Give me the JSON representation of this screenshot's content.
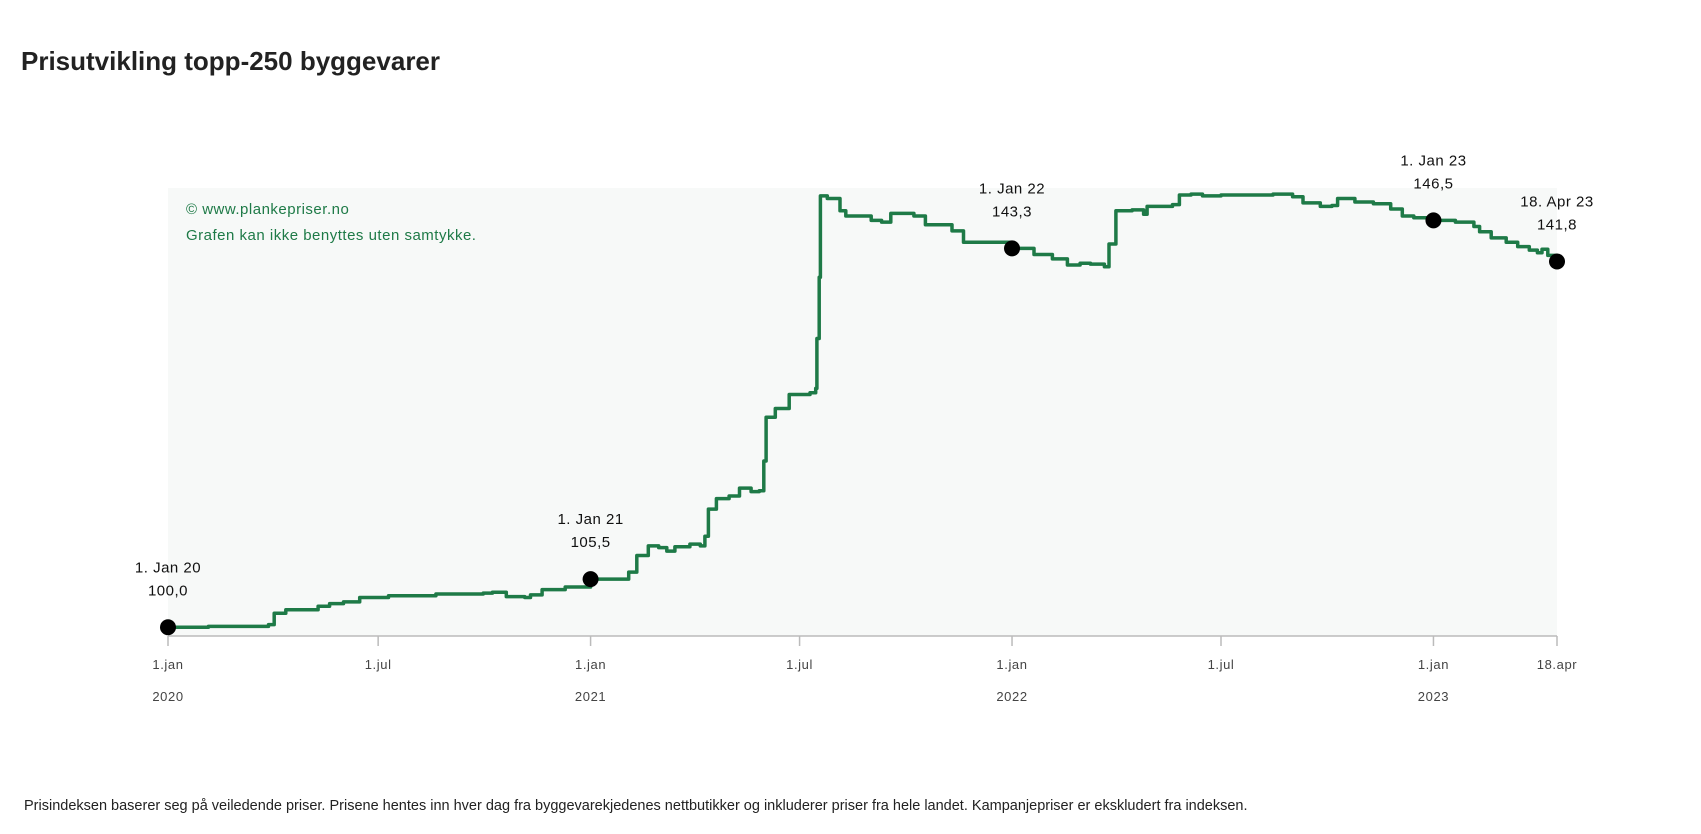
{
  "title": "Prisutvikling topp-250 byggevarer",
  "footnote": "Prisindeksen baserer seg på veiledende priser. Prisene hentes inn hver dag fra byggevarekjedenes nettbutikker og inkluderer priser fra hele landet. Kampanjepriser er ekskludert fra indeksen.",
  "watermark": {
    "line1": "© www.plankepriser.no",
    "line2": "Grafen kan ikke benyttes uten samtykke."
  },
  "colors": {
    "line": "#1e7a47",
    "plot_bg": "#f7f9f8",
    "axis": "#bbbbbb",
    "marker": "#000000",
    "watermark": "#1e7a47"
  },
  "chart_data": {
    "type": "line",
    "xlim": [
      "2020-01-01",
      "2023-04-18"
    ],
    "ylim": [
      99,
      150.2
    ],
    "grid": false,
    "x_ticks": [
      {
        "date": "2020-01-01",
        "label": "1.jan",
        "year": "2020"
      },
      {
        "date": "2020-07-01",
        "label": "1.jul",
        "year": ""
      },
      {
        "date": "2021-01-01",
        "label": "1.jan",
        "year": "2021"
      },
      {
        "date": "2021-07-01",
        "label": "1.jul",
        "year": ""
      },
      {
        "date": "2022-01-01",
        "label": "1.jan",
        "year": "2022"
      },
      {
        "date": "2022-07-01",
        "label": "1.jul",
        "year": ""
      },
      {
        "date": "2023-01-01",
        "label": "1.jan",
        "year": "2023"
      },
      {
        "date": "2023-04-18",
        "label": "18.apr",
        "year": ""
      }
    ],
    "series": [
      {
        "points": [
          [
            "2020-01-01",
            100.0
          ],
          [
            "2020-02-05",
            100.1
          ],
          [
            "2020-03-15",
            100.1
          ],
          [
            "2020-03-28",
            100.3
          ],
          [
            "2020-04-02",
            101.6
          ],
          [
            "2020-04-12",
            102.0
          ],
          [
            "2020-05-01",
            102.0
          ],
          [
            "2020-05-10",
            102.4
          ],
          [
            "2020-05-20",
            102.7
          ],
          [
            "2020-06-01",
            102.9
          ],
          [
            "2020-06-15",
            103.4
          ],
          [
            "2020-07-10",
            103.6
          ],
          [
            "2020-08-20",
            103.8
          ],
          [
            "2020-09-30",
            103.9
          ],
          [
            "2020-10-08",
            104.0
          ],
          [
            "2020-10-20",
            103.5
          ],
          [
            "2020-11-05",
            103.4
          ],
          [
            "2020-11-10",
            103.7
          ],
          [
            "2020-11-20",
            104.3
          ],
          [
            "2020-12-10",
            104.6
          ],
          [
            "2021-01-01",
            105.5
          ],
          [
            "2021-01-10",
            105.5
          ],
          [
            "2021-01-25",
            105.5
          ],
          [
            "2021-02-03",
            106.3
          ],
          [
            "2021-02-10",
            108.2
          ],
          [
            "2021-02-20",
            109.3
          ],
          [
            "2021-03-01",
            109.1
          ],
          [
            "2021-03-08",
            108.7
          ],
          [
            "2021-03-15",
            109.2
          ],
          [
            "2021-03-28",
            109.5
          ],
          [
            "2021-04-06",
            109.3
          ],
          [
            "2021-04-10",
            110.4
          ],
          [
            "2021-04-13",
            113.5
          ],
          [
            "2021-04-20",
            114.7
          ],
          [
            "2021-05-01",
            115.0
          ],
          [
            "2021-05-10",
            115.9
          ],
          [
            "2021-05-20",
            115.5
          ],
          [
            "2021-05-27",
            115.6
          ],
          [
            "2021-05-31",
            119.0
          ],
          [
            "2021-06-02",
            124.0
          ],
          [
            "2021-06-10",
            125.0
          ],
          [
            "2021-06-22",
            126.6
          ],
          [
            "2021-07-10",
            126.8
          ],
          [
            "2021-07-15",
            127.3
          ],
          [
            "2021-07-16",
            133.0
          ],
          [
            "2021-07-18",
            140.0
          ],
          [
            "2021-07-19",
            149.3
          ],
          [
            "2021-07-25",
            149.0
          ],
          [
            "2021-08-05",
            147.6
          ],
          [
            "2021-08-10",
            147.0
          ],
          [
            "2021-09-01",
            146.5
          ],
          [
            "2021-09-10",
            146.3
          ],
          [
            "2021-09-18",
            147.3
          ],
          [
            "2021-10-08",
            147.0
          ],
          [
            "2021-10-18",
            146.0
          ],
          [
            "2021-11-10",
            145.3
          ],
          [
            "2021-11-20",
            144.0
          ],
          [
            "2022-01-01",
            143.3
          ],
          [
            "2022-01-20",
            142.6
          ],
          [
            "2022-02-05",
            142.1
          ],
          [
            "2022-02-18",
            141.4
          ],
          [
            "2022-03-01",
            141.6
          ],
          [
            "2022-03-10",
            141.5
          ],
          [
            "2022-03-22",
            141.2
          ],
          [
            "2022-03-26",
            143.8
          ],
          [
            "2022-04-01",
            147.6
          ],
          [
            "2022-04-15",
            147.7
          ],
          [
            "2022-04-25",
            147.2
          ],
          [
            "2022-04-28",
            148.1
          ],
          [
            "2022-05-20",
            148.3
          ],
          [
            "2022-05-26",
            149.4
          ],
          [
            "2022-06-05",
            149.5
          ],
          [
            "2022-06-15",
            149.3
          ],
          [
            "2022-07-01",
            149.4
          ],
          [
            "2022-08-15",
            149.5
          ],
          [
            "2022-09-01",
            149.2
          ],
          [
            "2022-09-10",
            148.5
          ],
          [
            "2022-09-25",
            148.1
          ],
          [
            "2022-10-05",
            148.2
          ],
          [
            "2022-10-10",
            149.0
          ],
          [
            "2022-10-25",
            148.6
          ],
          [
            "2022-11-10",
            148.4
          ],
          [
            "2022-11-25",
            147.8
          ],
          [
            "2022-12-05",
            147.0
          ],
          [
            "2022-12-15",
            146.8
          ],
          [
            "2023-01-01",
            146.5
          ],
          [
            "2023-01-20",
            146.3
          ],
          [
            "2023-02-05",
            145.8
          ],
          [
            "2023-02-10",
            145.2
          ],
          [
            "2023-02-20",
            144.5
          ],
          [
            "2023-03-05",
            144.0
          ],
          [
            "2023-03-15",
            143.5
          ],
          [
            "2023-03-25",
            143.1
          ],
          [
            "2023-04-01",
            142.8
          ],
          [
            "2023-04-05",
            143.2
          ],
          [
            "2023-04-10",
            142.5
          ],
          [
            "2023-04-18",
            141.8
          ]
        ]
      }
    ],
    "markers": [
      {
        "date": "2020-01-01",
        "value": 100.0,
        "label": "1. Jan 20",
        "value_label": "100,0"
      },
      {
        "date": "2021-01-01",
        "value": 105.5,
        "label": "1. Jan 21",
        "value_label": "105,5"
      },
      {
        "date": "2022-01-01",
        "value": 143.3,
        "label": "1. Jan 22",
        "value_label": "143,3"
      },
      {
        "date": "2023-01-01",
        "value": 146.5,
        "label": "1. Jan 23",
        "value_label": "146,5"
      },
      {
        "date": "2023-04-18",
        "value": 141.8,
        "label": "18. Apr 23",
        "value_label": "141,8"
      }
    ]
  }
}
